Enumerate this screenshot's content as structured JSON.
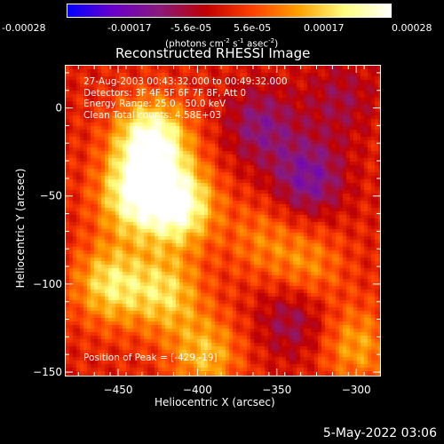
{
  "colorbar": {
    "ticks": [
      "-0.00028",
      "-0.00017",
      "-5.6e-05",
      "5.6e-05",
      "0.00017",
      "0.00028"
    ],
    "unit_text": "(photons cm",
    "unit_sup1": "-2",
    "unit_mid": " s",
    "unit_sup2": "-1",
    "unit_end": " asec",
    "unit_sup3": "-2",
    "unit_close": ")",
    "colors": [
      "#0000ff",
      "#6a00c8",
      "#8a1a7a",
      "#c00000",
      "#ff4000",
      "#ffa000",
      "#ffff80",
      "#ffffff"
    ]
  },
  "chart_data": {
    "type": "heatmap",
    "title": "Reconstructed RHESSI Image",
    "xlabel": "Heliocentric X (arcsec)",
    "ylabel": "Heliocentric Y (arcsec)",
    "xlim": [
      -483,
      -285
    ],
    "ylim": [
      -152,
      24
    ],
    "x_ticks": [
      -450,
      -400,
      -350,
      -300
    ],
    "y_ticks": [
      0,
      -50,
      -100,
      -150
    ],
    "x_tick_labels": [
      "−450",
      "−400",
      "−350",
      "−300"
    ],
    "y_tick_labels": [
      "0",
      "−50",
      "−100",
      "−150"
    ],
    "value_range": [
      -0.00028,
      0.00028
    ],
    "peak_position": [
      -429,
      -19
    ],
    "bright_regions": [
      {
        "x": -429,
        "y": -19,
        "value": 0.00028
      },
      {
        "x": -412,
        "y": -55,
        "value": 0.00026
      },
      {
        "x": -440,
        "y": -50,
        "value": 0.00022
      },
      {
        "x": -455,
        "y": -100,
        "value": 0.00018
      },
      {
        "x": -420,
        "y": -105,
        "value": 0.00016
      },
      {
        "x": -395,
        "y": -140,
        "value": 0.00014
      },
      {
        "x": -300,
        "y": -135,
        "value": 0.00012
      },
      {
        "x": -330,
        "y": -90,
        "value": 0.0001
      },
      {
        "x": -360,
        "y": -75,
        "value": 8e-05
      }
    ],
    "dim_regions": [
      {
        "x": -360,
        "y": -10,
        "value": -0.00012
      },
      {
        "x": -330,
        "y": -40,
        "value": -0.00015
      },
      {
        "x": -340,
        "y": -120,
        "value": -0.0001
      },
      {
        "x": -310,
        "y": 5,
        "value": -8e-05
      }
    ]
  },
  "info": {
    "time_range": "27-Aug-2003 00:43:32.000 to 00:49:32.000",
    "detectors": "Detectors: 3F 4F 5F 6F 7F 8F, Att 0",
    "energy": "Energy Range: 25.0 - 50.0 keV",
    "clean": "Clean     Total counts: 4.58E+03",
    "peak": "Position of Peak = [-429,-19]"
  },
  "footer": {
    "date": "5-May-2022 03:06"
  }
}
